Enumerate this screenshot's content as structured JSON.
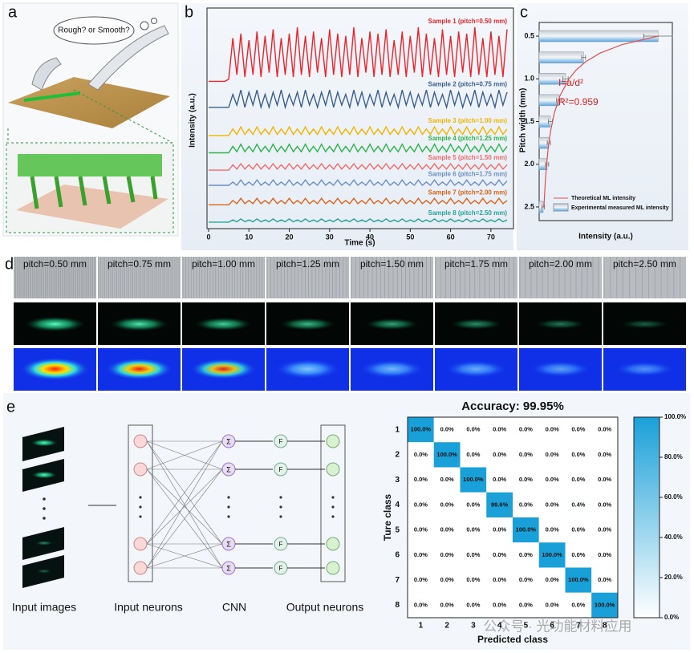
{
  "labels": {
    "a": "a",
    "b": "b",
    "c": "c",
    "d": "d",
    "e": "e"
  },
  "panel_a": {
    "bubble": "Rough? or Smooth?"
  },
  "chart_data": [
    {
      "type": "line",
      "x_label": "Time (s)",
      "y_label": "Intensity (a.u.)",
      "xlim": [
        0,
        75
      ],
      "xticks": [
        0,
        10,
        20,
        30,
        40,
        50,
        60,
        70
      ],
      "ylim": [
        0,
        100
      ],
      "x": [
        0,
        1,
        2,
        3,
        4,
        5,
        6,
        7,
        8,
        9,
        10,
        11,
        12,
        13,
        14,
        15,
        16,
        17,
        18,
        19,
        20,
        21,
        22,
        23,
        24,
        25,
        26,
        27,
        28,
        29,
        30,
        31,
        32,
        33,
        34,
        35,
        36,
        37,
        38,
        39,
        40,
        41,
        42,
        43,
        44,
        45,
        46,
        47,
        48,
        49,
        50,
        51,
        52,
        53,
        54,
        55,
        56,
        57,
        58,
        59,
        60,
        61,
        62,
        63,
        64,
        65,
        66,
        67,
        68,
        69,
        70,
        71,
        72,
        73,
        74
      ],
      "series": [
        {
          "name": "Sample 1 (pitch=0.50 mm)",
          "color": "#e8262c",
          "values": [
            68,
            68,
            68,
            68,
            68,
            69,
            88,
            71,
            90,
            70,
            87,
            71,
            91,
            70,
            89,
            72,
            92,
            70,
            88,
            71,
            90,
            70,
            93,
            71,
            89,
            70,
            91,
            72,
            88,
            70,
            92,
            71,
            90,
            70,
            89,
            71,
            93,
            70,
            88,
            72,
            91,
            70,
            90,
            71,
            92,
            70,
            87,
            71,
            91,
            70,
            89,
            72,
            93,
            70,
            90,
            71,
            88,
            70,
            92,
            71,
            89,
            70,
            91,
            72,
            90,
            70,
            93,
            71,
            88,
            70,
            91,
            71,
            89,
            70,
            92
          ]
        },
        {
          "name": "Sample 2 (pitch=0.75 mm)",
          "color": "#3a5f8f",
          "values": [
            56,
            56,
            56,
            56,
            56,
            56,
            62,
            57,
            64,
            56,
            63,
            57,
            64,
            56,
            62,
            56,
            63,
            57,
            64,
            56,
            62,
            57,
            63,
            56,
            64,
            57,
            62,
            56,
            63,
            57,
            64,
            56,
            63,
            57,
            62,
            56,
            64,
            57,
            63,
            56,
            62,
            57,
            64,
            56,
            63,
            57,
            62,
            56,
            64,
            57,
            63,
            56,
            62,
            57,
            64,
            56,
            63,
            57,
            62,
            56,
            64,
            57,
            63,
            56,
            62,
            57,
            64,
            56,
            63,
            57,
            62,
            56,
            64,
            57,
            63
          ]
        },
        {
          "name": "Sample 3 (pitch=1.00 mm)",
          "color": "#f2b400",
          "values": [
            43,
            43,
            43,
            43,
            43,
            43,
            46,
            43.5,
            47,
            43.5,
            46,
            43.5,
            47,
            43.5,
            46,
            43.5,
            47,
            43.5,
            46,
            43.5,
            47,
            43.5,
            46,
            43.5,
            47,
            43.5,
            46,
            43.5,
            47,
            43.5,
            46,
            43.5,
            47,
            43.5,
            46,
            43.5,
            47,
            43.5,
            46,
            43.5,
            47,
            43.5,
            46,
            43.5,
            47,
            43.5,
            46,
            43.5,
            47,
            43.5,
            46,
            43.5,
            47,
            43.5,
            46,
            43.5,
            47,
            43.5,
            46,
            43.5,
            47,
            43.5,
            46,
            43.5,
            47,
            43.5,
            46,
            43.5,
            47,
            43.5,
            46,
            43.5,
            47,
            43.5,
            46
          ]
        },
        {
          "name": "Sample 4 (pitch=1.25 mm)",
          "color": "#2db34a",
          "values": [
            35,
            35,
            35,
            35,
            35,
            35,
            38,
            35.5,
            39,
            35.5,
            38,
            35.5,
            39,
            35.5,
            38,
            35.5,
            39,
            35.5,
            38,
            35.5,
            39,
            35.5,
            38,
            35.5,
            39,
            35.5,
            38,
            35.5,
            39,
            35.5,
            38,
            35.5,
            39,
            35.5,
            38,
            35.5,
            39,
            35.5,
            38,
            35.5,
            39,
            35.5,
            38,
            35.5,
            39,
            35.5,
            38,
            35.5,
            39,
            35.5,
            38,
            35.5,
            39,
            35.5,
            38,
            35.5,
            39,
            35.5,
            38,
            35.5,
            39,
            35.5,
            38,
            35.5,
            39,
            35.5,
            38,
            35.5,
            39,
            35.5,
            38,
            35.5,
            39,
            35.5,
            38
          ]
        },
        {
          "name": "Sample 5 (pitch=1.50 mm)",
          "color": "#f06a6a",
          "values": [
            27,
            27,
            27,
            27,
            27,
            27,
            29.5,
            27.5,
            30,
            27.5,
            29.5,
            27.5,
            30,
            27.5,
            29.5,
            27.5,
            30,
            27.5,
            29.5,
            27.5,
            30,
            27.5,
            29.5,
            27.5,
            30,
            27.5,
            29.5,
            27.5,
            30,
            27.5,
            29.5,
            27.5,
            30,
            27.5,
            29.5,
            27.5,
            30,
            27.5,
            29.5,
            27.5,
            30,
            27.5,
            29.5,
            27.5,
            30,
            27.5,
            29.5,
            27.5,
            30,
            27.5,
            29.5,
            27.5,
            30,
            27.5,
            29.5,
            27.5,
            30,
            27.5,
            29.5,
            27.5,
            30,
            27.5,
            29.5,
            27.5,
            30,
            27.5,
            29.5,
            27.5,
            30,
            27.5,
            29.5,
            27.5,
            30,
            27.5,
            29.5
          ]
        },
        {
          "name": "Sample 6 (pitch=1.75 mm)",
          "color": "#6a8fc8",
          "values": [
            20,
            20,
            20,
            20,
            20,
            20,
            21.5,
            20,
            22.5,
            20,
            21.5,
            20,
            22.5,
            20,
            21.5,
            20,
            22.5,
            20,
            21.5,
            20,
            22.5,
            20,
            21.5,
            20,
            22.5,
            20,
            21.5,
            20,
            22.5,
            20,
            21.5,
            20,
            22.5,
            20,
            21.5,
            20,
            22.5,
            20,
            21.5,
            20,
            22.5,
            20,
            21.5,
            20,
            22.5,
            20,
            21.5,
            20,
            22.5,
            20,
            21.5,
            20,
            22.5,
            20,
            21.5,
            20,
            22.5,
            20,
            21.5,
            20,
            22.5,
            20,
            21.5,
            20,
            22.5,
            20,
            21.5,
            20,
            22.5,
            20,
            21.5,
            20,
            22.5,
            20,
            22
          ]
        },
        {
          "name": "Sample 7 (pitch=2.00 mm)",
          "color": "#d9641a",
          "values": [
            11,
            11,
            11,
            11,
            11,
            11,
            13,
            11.5,
            14,
            11.5,
            13,
            11.5,
            14,
            11.5,
            13,
            11.5,
            14,
            11.5,
            13,
            11.5,
            14,
            11.5,
            13,
            11.5,
            14,
            11.5,
            13,
            11.5,
            14,
            11.5,
            13,
            11.5,
            14,
            11.5,
            13,
            11.5,
            14,
            11.5,
            13,
            11.5,
            14,
            11.5,
            13,
            11.5,
            14,
            11.5,
            13,
            11.5,
            14,
            11.5,
            13,
            11.5,
            14,
            11.5,
            13,
            11.5,
            14,
            11.5,
            13,
            11.5,
            14,
            11.5,
            13,
            11.5,
            14,
            11.5,
            13,
            11.5,
            14,
            11.5,
            13,
            11.5,
            14,
            11.5,
            13
          ]
        },
        {
          "name": "Sample 8 (pitch=2.50 mm)",
          "color": "#2aa198",
          "values": [
            3,
            3,
            3,
            3,
            3,
            3,
            4,
            3.2,
            4.5,
            3.2,
            4,
            3.2,
            4.5,
            3.2,
            4,
            3.2,
            4.5,
            3.2,
            4,
            3.2,
            4.5,
            3.2,
            4,
            3.2,
            4.5,
            3.2,
            4,
            3.2,
            4.5,
            3.2,
            4,
            3.2,
            4.5,
            3.2,
            4,
            3.2,
            4.5,
            3.2,
            4,
            3.2,
            4.5,
            3.2,
            4,
            3.2,
            4.5,
            3.2,
            4,
            3.2,
            4.5,
            3.2,
            4,
            3.2,
            4.5,
            3.2,
            4,
            3.2,
            4.5,
            3.2,
            4,
            3.2,
            4.5,
            3.2,
            4,
            3.2,
            4.5,
            3.2,
            4,
            3.2,
            4.5,
            3.2,
            4,
            3.2,
            4.5,
            3.2,
            4
          ]
        }
      ]
    },
    {
      "type": "hbar",
      "x_label": "Intensity (a.u.)",
      "y_label": "Pitch width (mm)",
      "xlim": [
        0,
        100
      ],
      "ylim": [
        0.34,
        2.66
      ],
      "yticks": [
        0.5,
        {
          "value": 1,
          "label": "1.0"
        },
        1.5,
        {
          "value": 2,
          "label": "2.0"
        },
        2.5
      ],
      "y": [
        0.5,
        0.75,
        1,
        1.25,
        1.5,
        1.75,
        2,
        2.5
      ],
      "values": [
        91,
        34,
        20.2,
        15.3,
        8.6,
        7.4,
        6.1,
        3.1
      ],
      "errors": [
        11,
        1.5,
        2,
        2,
        1.5,
        1.2,
        1.2,
        1
      ],
      "bar_name": "Experimental measured ML intensity",
      "fit": {
        "name": "Theoretical ML intensity",
        "color": "#e05050",
        "x": [
          0.5,
          0.6,
          0.7,
          0.8,
          0.9,
          1.0,
          1.2,
          1.4,
          1.6,
          1.8,
          2.0,
          2.2,
          2.5
        ],
        "values": [
          91,
          63.2,
          46.4,
          35.5,
          28.1,
          22.8,
          15.8,
          11.6,
          8.9,
          7.0,
          5.7,
          4.7,
          3.6
        ]
      },
      "annotations": [
        "I=a/d²",
        "R²=0.959"
      ]
    },
    {
      "type": "heatmap",
      "title": "Accuracy: 99.95%",
      "x_label": "Predicted class",
      "y_label": "Ture class",
      "categories": [
        1,
        2,
        3,
        4,
        5,
        6,
        7,
        8
      ],
      "color": "#1aa0d8",
      "clim": [
        0,
        100
      ],
      "cticks": [
        {
          "value": 0,
          "label": "0.0%"
        },
        {
          "value": 20,
          "label": "20.0%"
        },
        {
          "value": 40,
          "label": "40.0%"
        },
        {
          "value": 60,
          "label": "60.0%"
        },
        {
          "value": 80,
          "label": "80.0%"
        },
        {
          "value": 100,
          "label": "100.0%"
        }
      ],
      "matrix": [
        [
          100,
          0,
          0,
          0,
          0,
          0,
          0,
          0
        ],
        [
          0,
          100,
          0,
          0,
          0,
          0,
          0,
          0
        ],
        [
          0,
          0,
          100,
          0,
          0,
          0,
          0,
          0
        ],
        [
          0,
          0,
          0,
          99.6,
          0,
          0,
          0.4,
          0
        ],
        [
          0,
          0,
          0,
          0,
          100,
          0,
          0,
          0
        ],
        [
          0,
          0,
          0,
          0,
          0,
          100,
          0,
          0
        ],
        [
          0,
          0,
          0,
          0,
          0,
          0,
          100,
          0
        ],
        [
          0,
          0,
          0,
          0,
          0,
          0,
          0,
          100
        ]
      ],
      "value_labels": [
        [
          "100.0%",
          "0.0%",
          "0.0%",
          "0.0%",
          "0.0%",
          "0.0%",
          "0.0%",
          "0.0%"
        ],
        [
          "0.0%",
          "100.0%",
          "0.0%",
          "0.0%",
          "0.0%",
          "0.0%",
          "0.0%",
          "0.0%"
        ],
        [
          "0.0%",
          "0.0%",
          "100.0%",
          "0.0%",
          "0.0%",
          "0.0%",
          "0.0%",
          "0.0%"
        ],
        [
          "0.0%",
          "0.0%",
          "0.0%",
          "99.6%",
          "0.0%",
          "0.0%",
          "0.4%",
          "0.0%"
        ],
        [
          "0.0%",
          "0.0%",
          "0.0%",
          "0.0%",
          "100.0%",
          "0.0%",
          "0.0%",
          "0.0%"
        ],
        [
          "0.0%",
          "0.0%",
          "0.0%",
          "0.0%",
          "0.0%",
          "100.0%",
          "0.0%",
          "0.0%"
        ],
        [
          "0.0%",
          "0.0%",
          "0.0%",
          "0.0%",
          "0.0%",
          "0.0%",
          "100.0%",
          "0.0%"
        ],
        [
          "0.0%",
          "0.0%",
          "0.0%",
          "0.0%",
          "0.0%",
          "0.0%",
          "0.0%",
          "100.0%"
        ]
      ]
    }
  ],
  "panel_d": {
    "columns": [
      "pitch=0.50 mm",
      "pitch=0.75 mm",
      "pitch=1.00 mm",
      "pitch=1.25 mm",
      "pitch=1.50 mm",
      "pitch=1.75 mm",
      "pitch=2.00 mm",
      "pitch=2.50 mm"
    ]
  },
  "panel_e": {
    "labels": [
      "Input images",
      "Input neurons",
      "CNN",
      "Output neurons"
    ],
    "sigma": "Σ",
    "f": "F"
  },
  "watermark": "公众号 · 光功能材料应用"
}
